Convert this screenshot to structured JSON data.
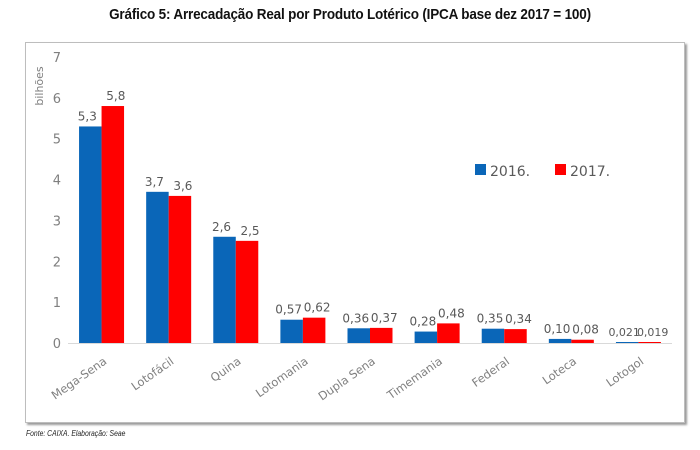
{
  "chart_data": {
    "type": "bar",
    "title": "Gráfico 5: Arrecadação Real por Produto Lotérico (IPCA base dez 2017 = 100)",
    "xlabel": "",
    "ylabel": "bilhões",
    "ylim": [
      0,
      7
    ],
    "yticks": [
      "0",
      "1",
      "2",
      "3",
      "4",
      "5",
      "6",
      "7"
    ],
    "grid": false,
    "legend_position": "right-middle",
    "categories": [
      "Mega-Sena",
      "Lotofácil",
      "Quina",
      "Lotomania",
      "Dupla Sena",
      "Timemania",
      "Federal",
      "Loteca",
      "Lotogol"
    ],
    "series": [
      {
        "name": "2016.",
        "color": "#0a66b8",
        "values": [
          5.3,
          3.7,
          2.6,
          0.57,
          0.36,
          0.28,
          0.35,
          0.1,
          0.021
        ],
        "labels": [
          "5,3",
          "3,7",
          "2,6",
          "0,57",
          "0,36",
          "0,28",
          "0,35",
          "0,10",
          "0,021"
        ]
      },
      {
        "name": "2017.",
        "color": "#ff0000",
        "values": [
          5.8,
          3.6,
          2.5,
          0.62,
          0.37,
          0.48,
          0.34,
          0.08,
          0.019
        ],
        "labels": [
          "5,8",
          "3,6",
          "2,5",
          "0,62",
          "0,37",
          "0,48",
          "0,34",
          "0,08",
          "0,019"
        ]
      }
    ],
    "source": "Fonte: CAIXA. Elaboração: Seae"
  }
}
